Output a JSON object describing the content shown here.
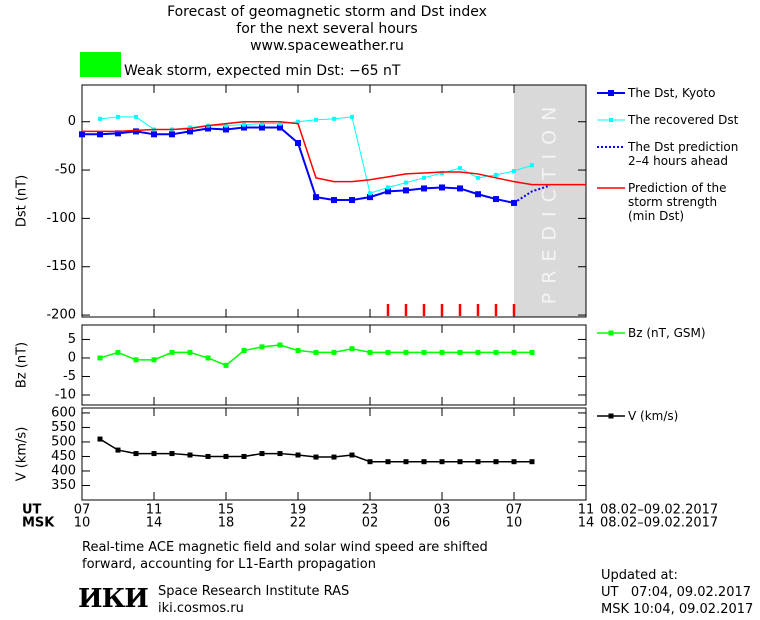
{
  "header": {
    "title_lines": [
      "Forecast of geomagnetic storm and Dst index",
      "for the next several hours",
      "www.spaceweather.ru"
    ],
    "storm_color": "#00ff00",
    "storm_label": "Weak storm, expected min Dst: −65 nT"
  },
  "chart_data": [
    {
      "type": "line",
      "y_label": "Dst (nT)",
      "xlim": [
        0,
        28
      ],
      "ylim": [
        -202,
        38
      ],
      "yticks": [
        0,
        -50,
        -100,
        -150,
        -200
      ],
      "prediction_band": [
        24,
        28
      ],
      "prediction_band_color": "#d9d9d9",
      "prediction_label": "PREDICTION",
      "storm_marks_x": [
        17,
        18,
        19,
        20,
        21,
        22,
        23,
        24
      ],
      "storm_marks_color": "#ff0000",
      "series": [
        {
          "name": "The Dst, Kyoto",
          "color": "#0000ff",
          "line_style": "solid",
          "line_width": 2,
          "marker": "square",
          "marker_size": 6,
          "x": [
            0,
            1,
            2,
            3,
            4,
            5,
            6,
            7,
            8,
            9,
            10,
            11,
            12,
            13,
            14,
            15,
            16,
            17,
            18,
            19,
            20,
            21,
            22,
            23,
            24
          ],
          "values": [
            -13,
            -13,
            -12,
            -10,
            -13,
            -13,
            -10,
            -7,
            -8,
            -6,
            -6,
            -6,
            -22,
            -78,
            -81,
            -81,
            -78,
            -72,
            -71,
            -69,
            -68,
            -69,
            -75,
            -80,
            -84
          ]
        },
        {
          "name": "The recovered Dst",
          "color": "#00ffff",
          "line_style": "solid",
          "line_width": 1,
          "marker": "square",
          "marker_size": 4,
          "x": [
            1,
            2,
            3,
            4,
            5,
            6,
            7,
            8,
            9,
            10,
            11,
            12,
            13,
            14,
            15,
            16,
            17,
            18,
            19,
            20,
            21,
            22,
            23,
            24,
            25
          ],
          "values": [
            3,
            5,
            5,
            -8,
            -8,
            -6,
            -4,
            -4,
            -3,
            -2,
            -2,
            0,
            2,
            3,
            5,
            -74,
            -68,
            -63,
            -58,
            -53,
            -48,
            -58,
            -55,
            -51,
            -45
          ]
        },
        {
          "name": "The Dst prediction\n2–4 hours ahead",
          "color": "#0000ff",
          "line_style": "dotted",
          "line_width": 2,
          "marker": "none",
          "x": [
            24,
            25,
            26
          ],
          "values": [
            -84,
            -72,
            -66
          ]
        },
        {
          "name": "Prediction of the\nstorm strength\n(min Dst)",
          "color": "#ff0000",
          "line_style": "solid",
          "line_width": 1.5,
          "marker": "none",
          "x": [
            0,
            1,
            2,
            3,
            4,
            5,
            6,
            7,
            8,
            9,
            10,
            11,
            12,
            13,
            14,
            15,
            16,
            17,
            18,
            19,
            20,
            21,
            22,
            23,
            24,
            25,
            28
          ],
          "values": [
            -10,
            -10,
            -10,
            -9,
            -8,
            -8,
            -7,
            -4,
            -2,
            0,
            0,
            0,
            -2,
            -58,
            -62,
            -62,
            -60,
            -57,
            -54,
            -53,
            -52,
            -52,
            -54,
            -58,
            -62,
            -65,
            -65
          ]
        }
      ]
    },
    {
      "type": "line",
      "y_label": "Bz (nT)",
      "xlim": [
        0,
        28
      ],
      "ylim": [
        -12.7,
        8.9
      ],
      "yticks": [
        5,
        0,
        -5,
        -10
      ],
      "series": [
        {
          "name": "Bz (nT, GSM)",
          "color": "#00ff00",
          "line_style": "solid",
          "line_width": 1.5,
          "marker": "square",
          "marker_size": 5,
          "x": [
            1,
            2,
            3,
            4,
            5,
            6,
            7,
            8,
            9,
            10,
            11,
            12,
            13,
            14,
            15,
            16,
            17,
            18,
            19,
            20,
            21,
            22,
            23,
            24,
            25
          ],
          "values": [
            0,
            1.5,
            -0.5,
            -0.5,
            1.5,
            1.5,
            0,
            -2,
            2,
            3,
            3.5,
            2,
            1.5,
            1.5,
            2.5,
            1.5,
            1.5,
            1.5,
            1.5,
            1.5,
            1.5,
            1.5,
            1.5,
            1.5,
            1.5
          ]
        }
      ]
    },
    {
      "type": "line",
      "y_label": "V (km/s)",
      "xlim": [
        0,
        28
      ],
      "ylim": [
        300,
        617
      ],
      "yticks": [
        600,
        550,
        500,
        450,
        400,
        350
      ],
      "xticks": [
        {
          "value": 0,
          "label": "07"
        },
        {
          "value": 4,
          "label": "11"
        },
        {
          "value": 8,
          "label": "15"
        },
        {
          "value": 12,
          "label": "19"
        },
        {
          "value": 16,
          "label": "23"
        },
        {
          "value": 20,
          "label": "03"
        },
        {
          "value": 24,
          "label": "07"
        },
        {
          "value": 28,
          "label": "11"
        }
      ],
      "x2ticks": [
        {
          "value": 0,
          "label": "10"
        },
        {
          "value": 4,
          "label": "14"
        },
        {
          "value": 8,
          "label": "18"
        },
        {
          "value": 12,
          "label": "22"
        },
        {
          "value": 16,
          "label": "02"
        },
        {
          "value": 20,
          "label": "06"
        },
        {
          "value": 24,
          "label": "10"
        },
        {
          "value": 28,
          "label": "14"
        }
      ],
      "x_row_label": "UT",
      "x2_row_label": "MSK",
      "x_date_range": "08.02–09.02.2017",
      "series": [
        {
          "name": "V (km/s)",
          "color": "#000000",
          "line_style": "solid",
          "line_width": 1.5,
          "marker": "square",
          "marker_size": 5,
          "x": [
            1,
            2,
            3,
            4,
            5,
            6,
            7,
            8,
            9,
            10,
            11,
            12,
            13,
            14,
            15,
            16,
            17,
            18,
            19,
            20,
            21,
            22,
            23,
            24,
            25
          ],
          "values": [
            510,
            472,
            460,
            460,
            460,
            455,
            450,
            450,
            450,
            460,
            460,
            455,
            448,
            448,
            455,
            432,
            432,
            432,
            432,
            432,
            432,
            432,
            432,
            432,
            432
          ]
        }
      ]
    }
  ],
  "footer": {
    "note_lines": [
      "Real-time ACE magnetic field and solar wind speed are shifted",
      "forward, accounting for L1-Earth propagation"
    ],
    "logo": "ИКИ",
    "institute": "Space Research Institute RAS",
    "site": "iki.cosmos.ru",
    "updated_lines": [
      "Updated at:",
      "UT   07:04, 09.02.2017",
      "MSK 10:04, 09.02.2017"
    ]
  }
}
